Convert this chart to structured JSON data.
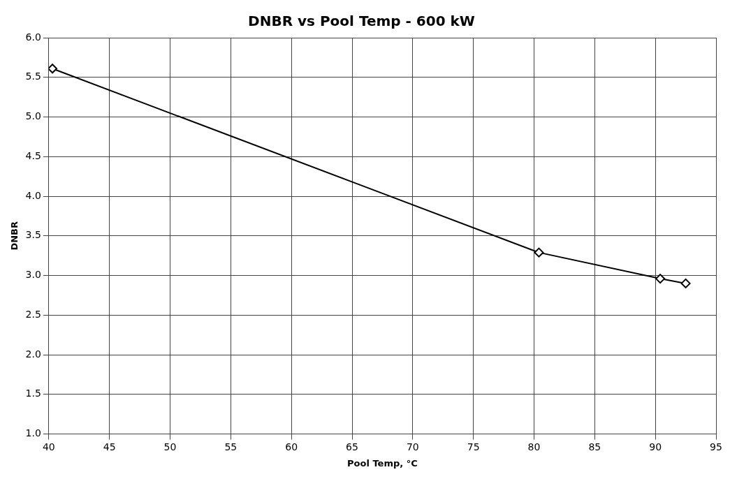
{
  "chart_data": {
    "type": "line",
    "title": "DNBR vs Pool Temp - 600 kW",
    "xlabel": "Pool Temp, °C",
    "ylabel": "DNBR",
    "x": [
      40.3,
      80.4,
      90.4,
      92.5
    ],
    "series": [
      {
        "color": "#000000",
        "values": [
          5.61,
          3.29,
          2.96,
          2.9
        ]
      }
    ],
    "xlim": [
      40,
      95
    ],
    "xticks": [
      40,
      45,
      50,
      55,
      60,
      65,
      70,
      75,
      80,
      85,
      90,
      95
    ],
    "ylim": [
      1,
      6
    ],
    "yticks": [
      {
        "value": 1,
        "label": "1.0"
      },
      1.5,
      {
        "value": 2,
        "label": "2.0"
      },
      2.5,
      {
        "value": 3,
        "label": "3.0"
      },
      3.5,
      {
        "value": 4,
        "label": "4.0"
      },
      4.5,
      {
        "value": 5,
        "label": "5.0"
      },
      5.5,
      {
        "value": 6,
        "label": "6.0"
      }
    ],
    "grid": true,
    "legend": false,
    "marker": "diamond",
    "line_style": "solid"
  }
}
